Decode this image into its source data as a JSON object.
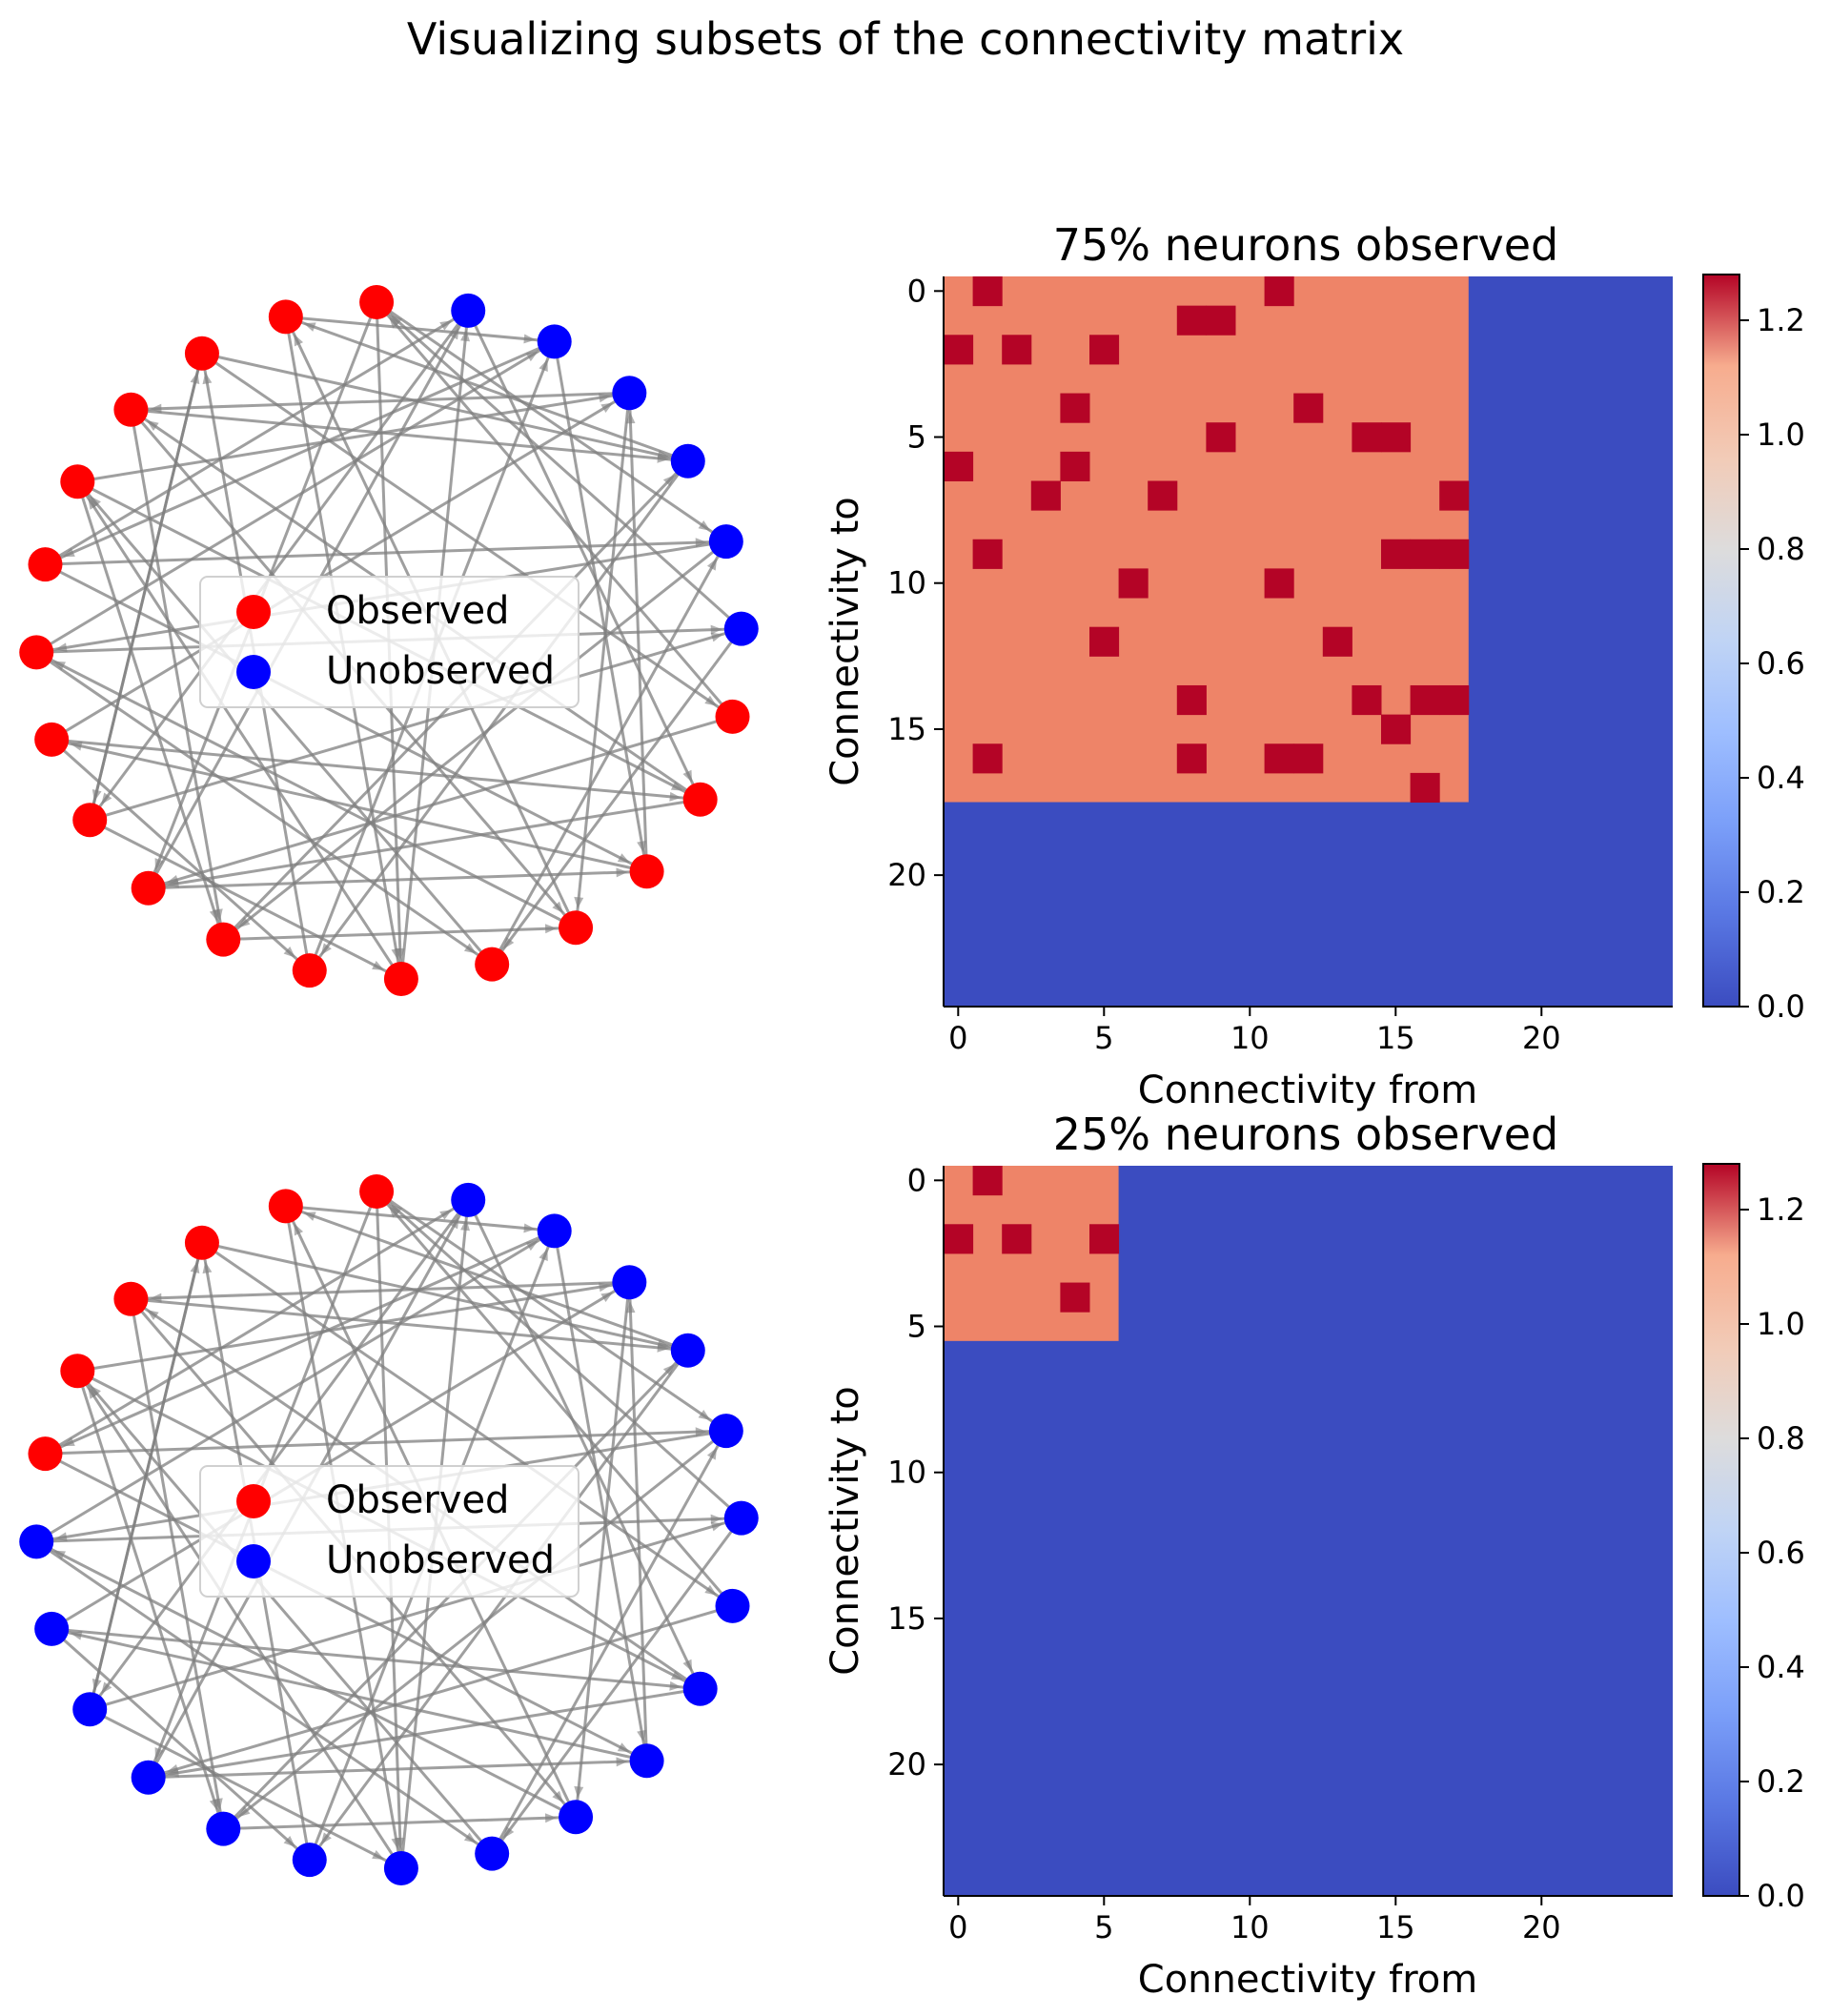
{
  "suptitle": "Visualizing subsets of the connectivity matrix",
  "colors": {
    "observed": "#ff0000",
    "unobserved": "#0000ff",
    "edge": "#7f7f7f",
    "heat_high": "#b40426",
    "heat_mid": "#ee8468",
    "heat_zero": "#3b4cc0"
  },
  "legend": {
    "observed": "Observed",
    "unobserved": "Unobserved"
  },
  "chart_data": [
    {
      "type": "network",
      "panel": "top-left",
      "n_nodes": 24,
      "observed_count": 18,
      "edges": [
        [
          0,
          9
        ],
        [
          0,
          19
        ],
        [
          1,
          12
        ],
        [
          1,
          22
        ],
        [
          2,
          8
        ],
        [
          2,
          17
        ],
        [
          3,
          14
        ],
        [
          3,
          20
        ],
        [
          4,
          10
        ],
        [
          4,
          21
        ],
        [
          5,
          15
        ],
        [
          5,
          23
        ],
        [
          6,
          13
        ],
        [
          6,
          18
        ],
        [
          7,
          11
        ],
        [
          7,
          16
        ],
        [
          8,
          12
        ],
        [
          8,
          2
        ],
        [
          9,
          15
        ],
        [
          10,
          20
        ],
        [
          11,
          22
        ],
        [
          12,
          4
        ],
        [
          13,
          19
        ],
        [
          14,
          1
        ],
        [
          15,
          21
        ],
        [
          16,
          3
        ],
        [
          17,
          9
        ],
        [
          18,
          0
        ],
        [
          19,
          6
        ],
        [
          20,
          11
        ],
        [
          21,
          14
        ],
        [
          22,
          5
        ],
        [
          23,
          16
        ],
        [
          0,
          12
        ],
        [
          2,
          20
        ],
        [
          4,
          16
        ],
        [
          6,
          22
        ],
        [
          8,
          18
        ],
        [
          10,
          14
        ],
        [
          12,
          23
        ],
        [
          14,
          6
        ],
        [
          16,
          9
        ],
        [
          18,
          13
        ],
        [
          20,
          1
        ],
        [
          22,
          15
        ],
        [
          3,
          10
        ],
        [
          5,
          19
        ],
        [
          7,
          21
        ],
        [
          9,
          23
        ],
        [
          11,
          2
        ],
        [
          13,
          4
        ],
        [
          15,
          7
        ],
        [
          17,
          0
        ],
        [
          19,
          10
        ],
        [
          21,
          3
        ],
        [
          23,
          8
        ]
      ]
    },
    {
      "type": "heatmap",
      "panel": "top-right",
      "title": "75% neurons observed",
      "xlabel": "Connectivity from",
      "ylabel": "Connectivity to",
      "size": 25,
      "observed_size": 18,
      "base_value": 1.0,
      "strong_value": 1.27,
      "strong_cells": [
        [
          0,
          1
        ],
        [
          0,
          11
        ],
        [
          1,
          8
        ],
        [
          1,
          9
        ],
        [
          2,
          0
        ],
        [
          2,
          2
        ],
        [
          2,
          5
        ],
        [
          4,
          4
        ],
        [
          4,
          12
        ],
        [
          5,
          9
        ],
        [
          5,
          14
        ],
        [
          5,
          15
        ],
        [
          6,
          0
        ],
        [
          6,
          4
        ],
        [
          7,
          3
        ],
        [
          7,
          7
        ],
        [
          7,
          17
        ],
        [
          9,
          1
        ],
        [
          9,
          15
        ],
        [
          9,
          16
        ],
        [
          9,
          17
        ],
        [
          10,
          6
        ],
        [
          10,
          11
        ],
        [
          12,
          5
        ],
        [
          12,
          13
        ],
        [
          14,
          8
        ],
        [
          14,
          14
        ],
        [
          14,
          16
        ],
        [
          14,
          17
        ],
        [
          15,
          15
        ],
        [
          16,
          1
        ],
        [
          16,
          8
        ],
        [
          16,
          11
        ],
        [
          16,
          12
        ],
        [
          17,
          16
        ]
      ],
      "xticks": [
        0,
        5,
        10,
        15,
        20
      ],
      "yticks": [
        0,
        5,
        10,
        15,
        20
      ],
      "colorbar": {
        "vmin": 0.0,
        "vmax": 1.28,
        "ticks": [
          "0.0",
          "0.2",
          "0.4",
          "0.6",
          "0.8",
          "1.0",
          "1.2"
        ]
      }
    },
    {
      "type": "network",
      "panel": "bottom-left",
      "n_nodes": 24,
      "observed_count": 6,
      "edges": [
        [
          0,
          9
        ],
        [
          0,
          19
        ],
        [
          1,
          12
        ],
        [
          1,
          22
        ],
        [
          2,
          8
        ],
        [
          2,
          17
        ],
        [
          3,
          14
        ],
        [
          3,
          20
        ],
        [
          4,
          10
        ],
        [
          4,
          21
        ],
        [
          5,
          15
        ],
        [
          5,
          23
        ],
        [
          6,
          13
        ],
        [
          6,
          18
        ],
        [
          7,
          11
        ],
        [
          7,
          16
        ],
        [
          8,
          12
        ],
        [
          8,
          2
        ],
        [
          9,
          15
        ],
        [
          10,
          20
        ],
        [
          11,
          22
        ],
        [
          12,
          4
        ],
        [
          13,
          19
        ],
        [
          14,
          1
        ],
        [
          15,
          21
        ],
        [
          16,
          3
        ],
        [
          17,
          9
        ],
        [
          18,
          0
        ],
        [
          19,
          6
        ],
        [
          20,
          11
        ],
        [
          21,
          14
        ],
        [
          22,
          5
        ],
        [
          23,
          16
        ],
        [
          0,
          12
        ],
        [
          2,
          20
        ],
        [
          4,
          16
        ],
        [
          6,
          22
        ],
        [
          8,
          18
        ],
        [
          10,
          14
        ],
        [
          12,
          23
        ],
        [
          14,
          6
        ],
        [
          16,
          9
        ],
        [
          18,
          13
        ],
        [
          20,
          1
        ],
        [
          22,
          15
        ],
        [
          3,
          10
        ],
        [
          5,
          19
        ],
        [
          7,
          21
        ],
        [
          9,
          23
        ],
        [
          11,
          2
        ],
        [
          13,
          4
        ],
        [
          15,
          7
        ],
        [
          17,
          0
        ],
        [
          19,
          10
        ],
        [
          21,
          3
        ],
        [
          23,
          8
        ]
      ]
    },
    {
      "type": "heatmap",
      "panel": "bottom-right",
      "title": "25% neurons observed",
      "xlabel": "Connectivity from",
      "ylabel": "Connectivity to",
      "size": 25,
      "observed_size": 6,
      "base_value": 1.0,
      "strong_value": 1.27,
      "strong_cells": [
        [
          0,
          1
        ],
        [
          2,
          0
        ],
        [
          2,
          2
        ],
        [
          2,
          5
        ],
        [
          4,
          4
        ]
      ],
      "xticks": [
        0,
        5,
        10,
        15,
        20
      ],
      "yticks": [
        0,
        5,
        10,
        15,
        20
      ],
      "colorbar": {
        "vmin": 0.0,
        "vmax": 1.28,
        "ticks": [
          "0.0",
          "0.2",
          "0.4",
          "0.6",
          "0.8",
          "1.0",
          "1.2"
        ]
      }
    }
  ]
}
